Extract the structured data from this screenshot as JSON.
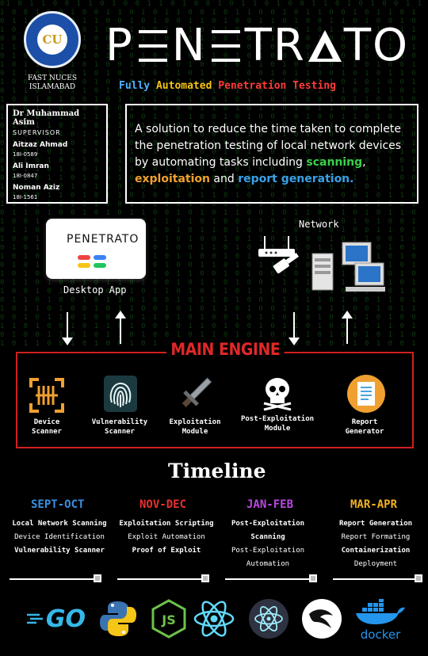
{
  "logo": {
    "monogram": "CU"
  },
  "university": {
    "line1": "FAST NUCES",
    "line2": "ISLAMABAD"
  },
  "brand": {
    "title": "PENETRATO",
    "letters": [
      "P",
      "E",
      "N",
      "E",
      "T",
      "R",
      "A",
      "T",
      "O"
    ]
  },
  "tagline": {
    "word1": "Fully",
    "word2": "Automated",
    "word3": "Penetration",
    "word4": "Testing"
  },
  "team": {
    "supervisor": "Dr Muhammad Asim",
    "supervisor_role": "SUPERVISOR",
    "members": [
      {
        "name": "Aitzaz Ahmad",
        "roll": "18I-0589"
      },
      {
        "name": "Ali Imran",
        "roll": "18I-0847"
      },
      {
        "name": "Noman Aziz",
        "roll": "18I-1561"
      }
    ]
  },
  "description": {
    "part1": "A solution to reduce the time taken to complete the penetration testing of local network devices by automating tasks including ",
    "scanning": "scanning",
    "comma": ",",
    "exploitation": "exploitation",
    "and": " and ",
    "report": "report generation."
  },
  "desktop_app": {
    "mini_title": "PENETRATO",
    "label": "Desktop App"
  },
  "network": {
    "label": "Network"
  },
  "engine": {
    "title": "MAIN ENGINE",
    "modules": [
      {
        "line1": "Device",
        "line2": "Scanner",
        "icon": "scanner-icon"
      },
      {
        "line1": "Vulnerability",
        "line2": "Scanner",
        "icon": "fingerprint-icon"
      },
      {
        "line1": "Exploitation",
        "line2": "Module",
        "icon": "sword-icon"
      },
      {
        "line1": "Post-Exploitation",
        "line2": "Module",
        "icon": "skull-icon"
      },
      {
        "line1": "Report",
        "line2": "Generator",
        "icon": "report-icon"
      }
    ]
  },
  "timeline": {
    "title": "Timeline",
    "periods": [
      {
        "label": "SEPT-OCT",
        "color": "#3a8fe0",
        "items": [
          "Local Network Scanning",
          "Device Identification",
          "Vulnerability Scanner"
        ]
      },
      {
        "label": "NOV-DEC",
        "color": "#e83030",
        "items": [
          "Exploitation Scripting",
          "Exploit Automation",
          "Proof of Exploit"
        ]
      },
      {
        "label": "JAN-FEB",
        "color": "#b848e0",
        "items": [
          "Post-Exploitation",
          "Scanning",
          "Post-Exploitation",
          "Automation"
        ]
      },
      {
        "label": "MAR-APR",
        "color": "#f0b020",
        "items": [
          "Report Generation",
          "Report Formating",
          "Containerization",
          "Deployment"
        ]
      }
    ]
  },
  "tech": {
    "go": "GO",
    "docker": "docker"
  },
  "colors": {
    "green": "#39d04a",
    "orange": "#f0a030",
    "blue": "#3aa0e8",
    "red": "#d02020",
    "tag_blue": "#4fb0ff",
    "tag_yellow": "#f5c518",
    "tag_red": "#ff3b3b"
  }
}
